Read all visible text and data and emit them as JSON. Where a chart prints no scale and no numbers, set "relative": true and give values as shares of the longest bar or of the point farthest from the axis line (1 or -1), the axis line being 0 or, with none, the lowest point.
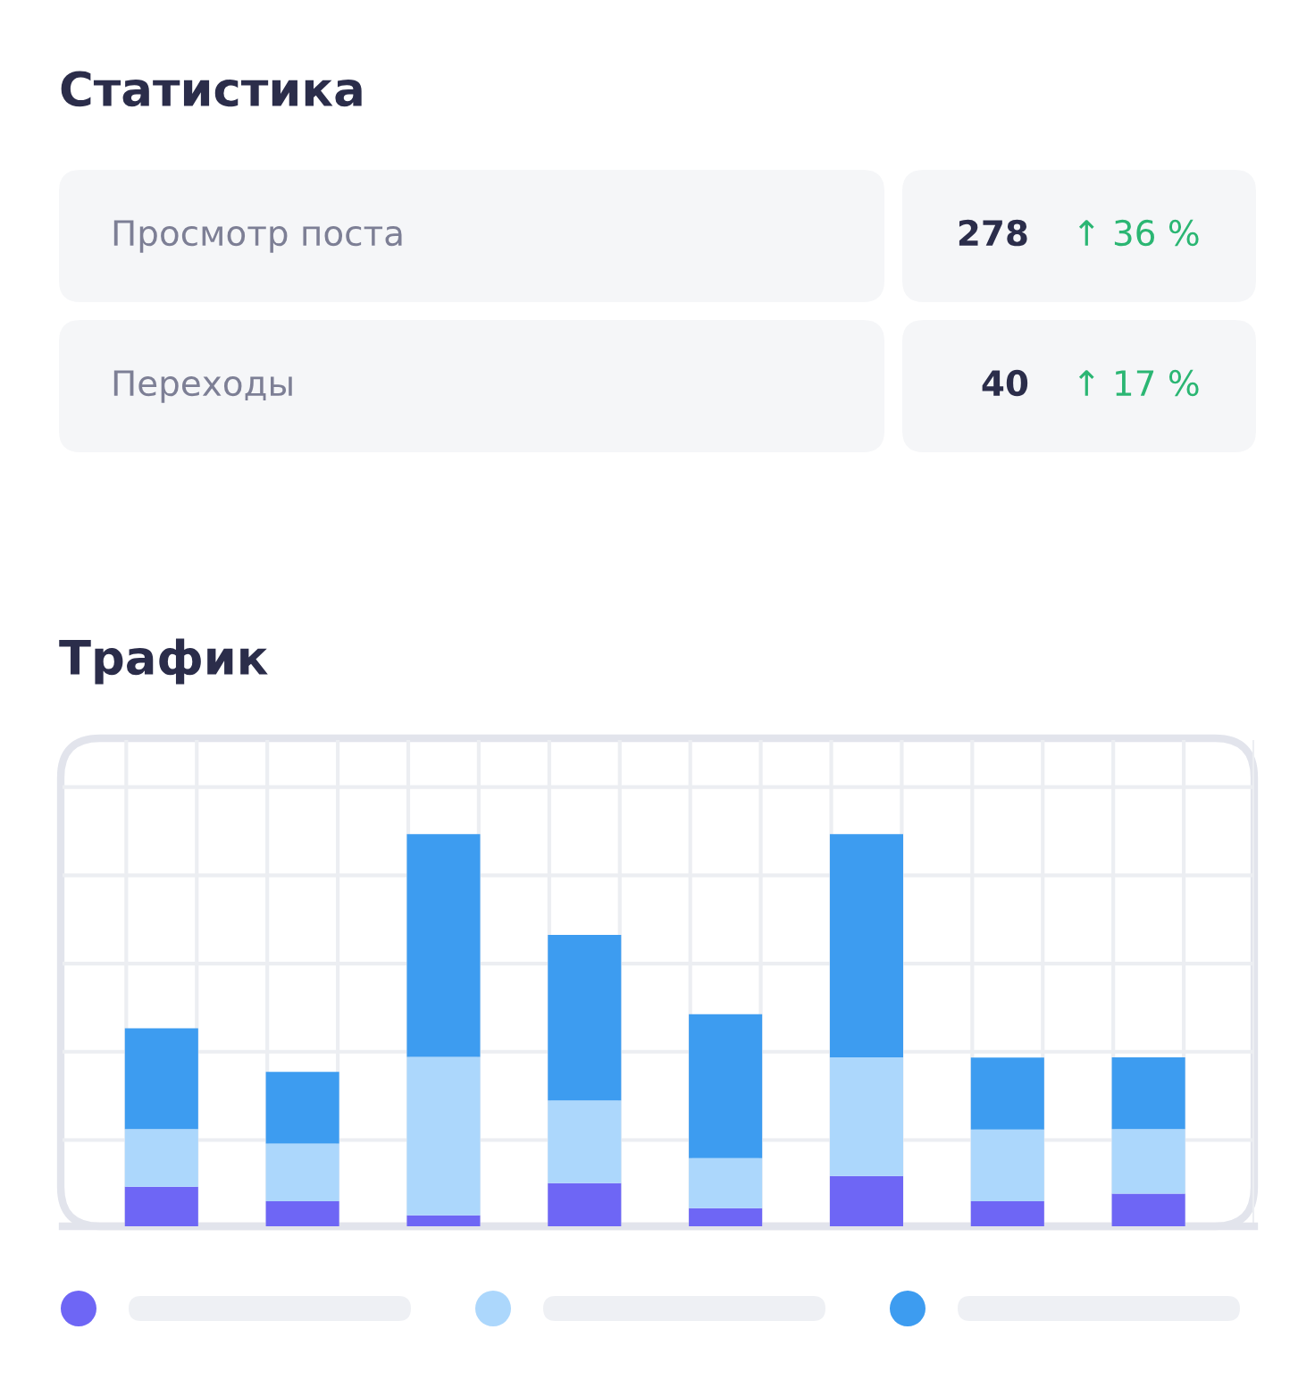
{
  "chart_data": [
    {
      "type": "other",
      "title": "Статистика",
      "annotations": [
        "Просмотр поста",
        "278",
        "↑ 36 %",
        "Переходы",
        "40",
        "↑ 17 %"
      ]
    },
    {
      "type": "bar",
      "title": "Трафик",
      "categories": [
        null,
        null,
        null,
        null,
        null,
        null,
        null,
        null
      ],
      "stacked": true,
      "relative": true,
      "grid": true,
      "series": [
        {
          "color": "#6e66f5",
          "values": [
            0.101,
            0.064,
            0.028,
            0.11,
            0.046,
            0.128,
            0.064,
            0.083
          ]
        },
        {
          "color": "#acd7fc",
          "values": [
            0.147,
            0.147,
            0.404,
            0.211,
            0.128,
            0.303,
            0.183,
            0.165
          ]
        },
        {
          "color": "#3d9cf0",
          "values": [
            0.257,
            0.183,
            0.568,
            0.422,
            0.367,
            0.569,
            0.183,
            0.183
          ]
        }
      ]
    }
  ]
}
